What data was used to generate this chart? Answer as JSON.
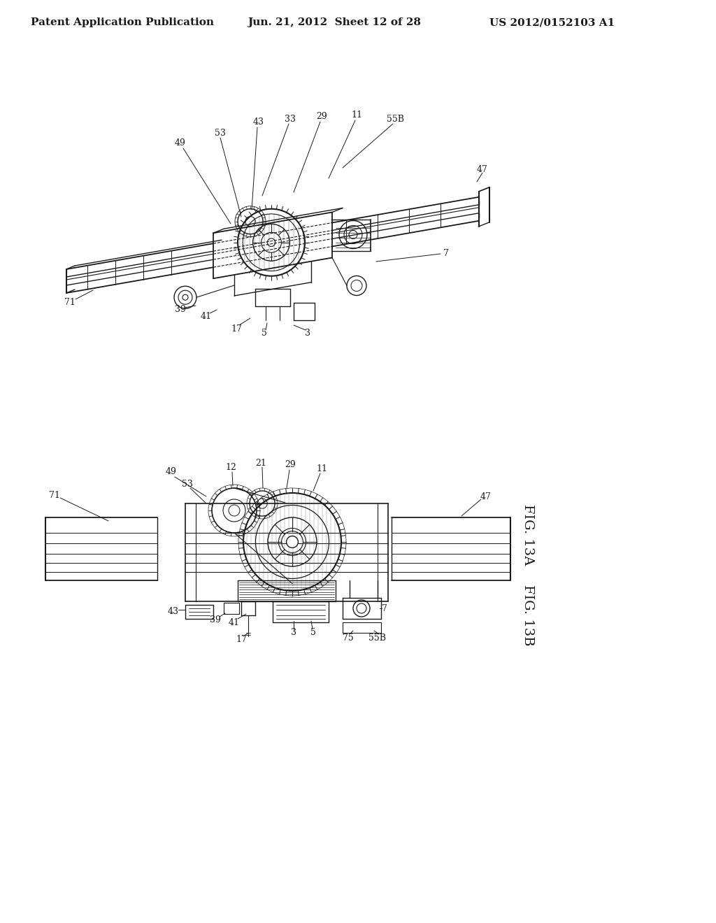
{
  "background_color": "#ffffff",
  "header_left": "Patent Application Publication",
  "header_center": "Jun. 21, 2012  Sheet 12 of 28",
  "header_right": "US 2012/0152103 A1",
  "fig_13b_label": "FIG. 13B",
  "fig_13a_label": "FIG. 13A",
  "line_color": "#1a1a1a",
  "text_color": "#1a1a1a",
  "header_fontsize": 11,
  "label_fontsize": 9,
  "fig_label_fontsize": 14
}
